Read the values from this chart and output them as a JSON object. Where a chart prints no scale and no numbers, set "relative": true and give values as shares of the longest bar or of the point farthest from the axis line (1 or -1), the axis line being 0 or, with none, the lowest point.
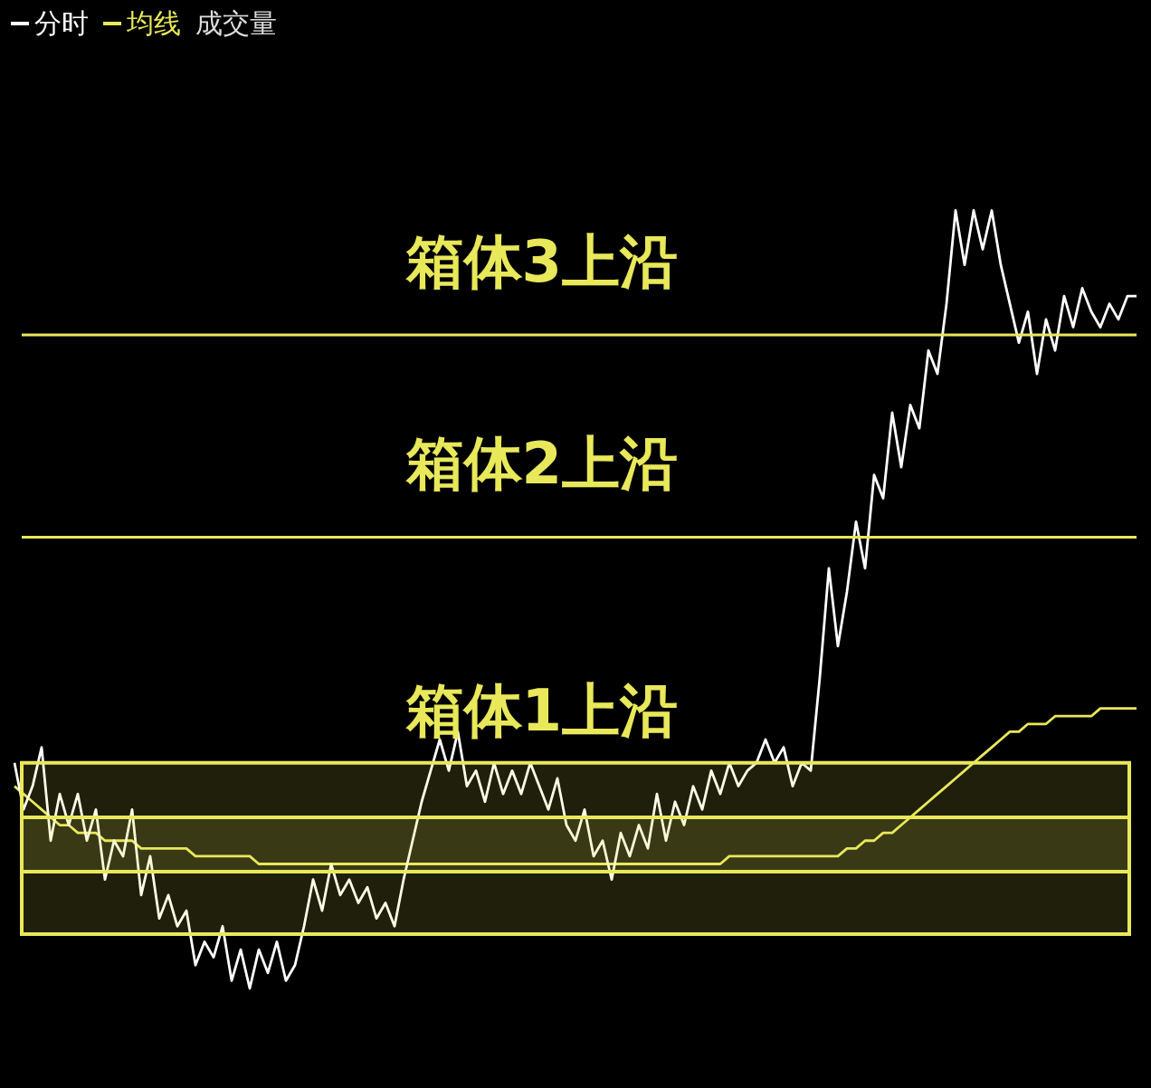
{
  "chart_data": {
    "type": "line",
    "relative": true,
    "legend": "top left",
    "marker": "none",
    "grid": false,
    "categories": [
      null,
      null,
      null,
      null,
      null,
      null,
      null,
      null,
      null,
      null,
      null,
      null,
      null,
      null,
      null,
      null,
      null,
      null,
      null,
      null,
      null,
      null,
      null,
      null,
      null,
      null,
      null,
      null,
      null,
      null,
      null,
      null,
      null,
      null,
      null,
      null,
      null,
      null,
      null,
      null,
      null,
      null,
      null,
      null,
      null,
      null,
      null,
      null,
      null,
      null,
      null,
      null,
      null,
      null,
      null,
      null,
      null,
      null,
      null,
      null,
      null,
      null,
      null,
      null,
      null,
      null,
      null,
      null,
      null,
      null,
      null,
      null,
      null,
      null,
      null,
      null,
      null,
      null,
      null,
      null,
      null,
      null,
      null,
      null,
      null,
      null,
      null,
      null,
      null,
      null,
      null,
      null,
      null,
      null,
      null,
      null,
      null,
      null,
      null,
      null,
      null,
      null,
      null,
      null,
      null,
      null,
      null,
      null,
      null,
      null,
      null,
      null,
      null,
      null,
      null,
      null,
      null,
      null,
      null,
      null,
      null,
      null,
      null,
      null,
      null
    ],
    "series": [
      {
        "name": "分时",
        "color": "#ffffff",
        "values": [
          0.29,
          0.23,
          0.26,
          0.31,
          0.19,
          0.25,
          0.21,
          0.25,
          0.19,
          0.23,
          0.14,
          0.19,
          0.17,
          0.23,
          0.12,
          0.17,
          0.09,
          0.12,
          0.08,
          0.1,
          0.03,
          0.06,
          0.04,
          0.08,
          0.01,
          0.05,
          0,
          0.05,
          0.02,
          0.06,
          0.01,
          0.03,
          0.08,
          0.14,
          0.1,
          0.16,
          0.12,
          0.14,
          0.11,
          0.13,
          0.09,
          0.11,
          0.08,
          0.14,
          0.19,
          0.24,
          0.28,
          0.32,
          0.28,
          0.33,
          0.26,
          0.28,
          0.24,
          0.29,
          0.25,
          0.28,
          0.25,
          0.29,
          0.26,
          0.23,
          0.27,
          0.21,
          0.19,
          0.23,
          0.17,
          0.19,
          0.14,
          0.2,
          0.17,
          0.21,
          0.18,
          0.25,
          0.19,
          0.24,
          0.21,
          0.26,
          0.23,
          0.28,
          0.25,
          0.29,
          0.26,
          0.28,
          0.29,
          0.32,
          0.29,
          0.31,
          0.26,
          0.29,
          0.28,
          0.4,
          0.54,
          0.44,
          0.51,
          0.6,
          0.54,
          0.66,
          0.63,
          0.74,
          0.67,
          0.75,
          0.72,
          0.82,
          0.79,
          0.88,
          1,
          0.93,
          1,
          0.95,
          1,
          0.93,
          0.88,
          0.83,
          0.87,
          0.79,
          0.86,
          0.82,
          0.89,
          0.85,
          0.9,
          0.87,
          0.85,
          0.88,
          0.86,
          0.89,
          0.89
        ]
      },
      {
        "name": "均线",
        "color": "#e8e85a",
        "values": [
          0.26,
          0.25,
          0.24,
          0.23,
          0.22,
          0.21,
          0.21,
          0.2,
          0.2,
          0.2,
          0.19,
          0.19,
          0.19,
          0.19,
          0.18,
          0.18,
          0.18,
          0.18,
          0.18,
          0.18,
          0.17,
          0.17,
          0.17,
          0.17,
          0.17,
          0.17,
          0.17,
          0.16,
          0.16,
          0.16,
          0.16,
          0.16,
          0.16,
          0.16,
          0.16,
          0.16,
          0.16,
          0.16,
          0.16,
          0.16,
          0.16,
          0.16,
          0.16,
          0.16,
          0.16,
          0.16,
          0.16,
          0.16,
          0.16,
          0.16,
          0.16,
          0.16,
          0.16,
          0.16,
          0.16,
          0.16,
          0.16,
          0.16,
          0.16,
          0.16,
          0.16,
          0.16,
          0.16,
          0.16,
          0.16,
          0.16,
          0.16,
          0.16,
          0.16,
          0.16,
          0.16,
          0.16,
          0.16,
          0.16,
          0.16,
          0.16,
          0.16,
          0.16,
          0.16,
          0.17,
          0.17,
          0.17,
          0.17,
          0.17,
          0.17,
          0.17,
          0.17,
          0.17,
          0.17,
          0.17,
          0.17,
          0.17,
          0.18,
          0.18,
          0.19,
          0.19,
          0.2,
          0.2,
          0.21,
          0.22,
          0.23,
          0.24,
          0.25,
          0.26,
          0.27,
          0.28,
          0.29,
          0.3,
          0.31,
          0.32,
          0.33,
          0.33,
          0.34,
          0.34,
          0.34,
          0.35,
          0.35,
          0.35,
          0.35,
          0.35,
          0.36,
          0.36,
          0.36,
          0.36,
          0.36
        ]
      }
    ],
    "ref_lines": [
      {
        "axis": "y",
        "value": 0.84,
        "label": "箱体3上沿",
        "color": "#e8e85a"
      },
      {
        "axis": "y",
        "value": 0.58,
        "label": "箱体2上沿",
        "color": "#e8e85a"
      }
    ],
    "bands": [
      {
        "axis": "y",
        "from": 0.07,
        "to": 0.29,
        "label": "箱体1上沿",
        "color": "#e8e85a"
      },
      {
        "axis": "y",
        "from": 0.15,
        "to": 0.22,
        "color": "#e8e85a"
      }
    ],
    "annotations": [
      "成交量"
    ]
  }
}
